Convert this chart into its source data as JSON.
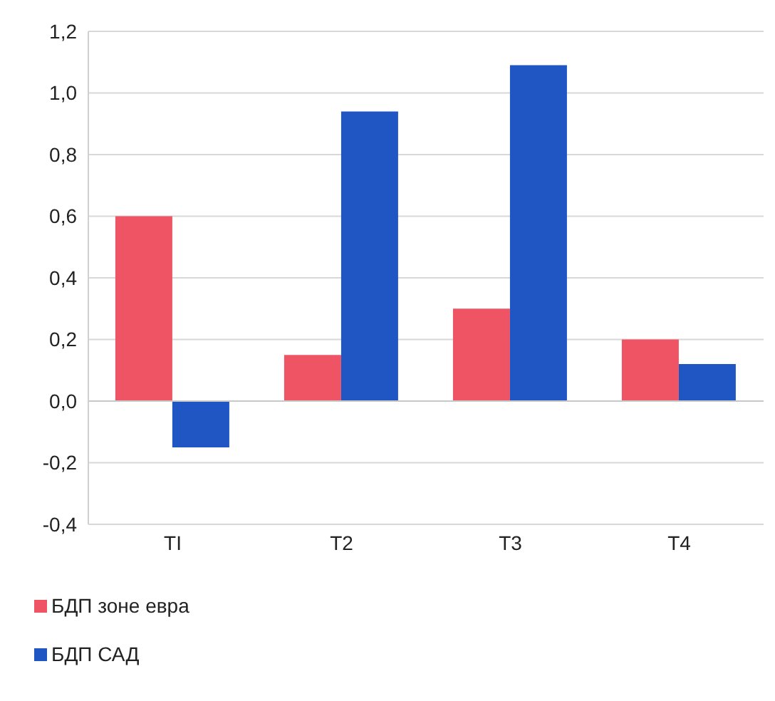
{
  "chart_data": {
    "type": "bar",
    "categories": [
      "TI",
      "T2",
      "T3",
      "T4"
    ],
    "series": [
      {
        "name": "БДП зоне евра",
        "color": "#ee5464",
        "values": [
          0.6,
          0.15,
          0.3,
          0.2
        ]
      },
      {
        "name": "БДП САД",
        "color": "#1f56c3",
        "values": [
          -0.15,
          0.94,
          1.09,
          0.12
        ]
      }
    ],
    "ylim": [
      -0.4,
      1.2
    ],
    "yticks": [
      {
        "value": -0.4,
        "label": "-0,4"
      },
      {
        "value": -0.2,
        "label": "-0,2"
      },
      {
        "value": 0,
        "label": "0,0"
      },
      {
        "value": 0.2,
        "label": "0,2"
      },
      {
        "value": 0.4,
        "label": "0,4"
      },
      {
        "value": 0.6,
        "label": "0,6"
      },
      {
        "value": 0.8,
        "label": "0,8"
      },
      {
        "value": 1,
        "label": "1,0"
      },
      {
        "value": 1.2,
        "label": "1,2"
      }
    ],
    "grid": "y",
    "legend": "bottom left"
  }
}
